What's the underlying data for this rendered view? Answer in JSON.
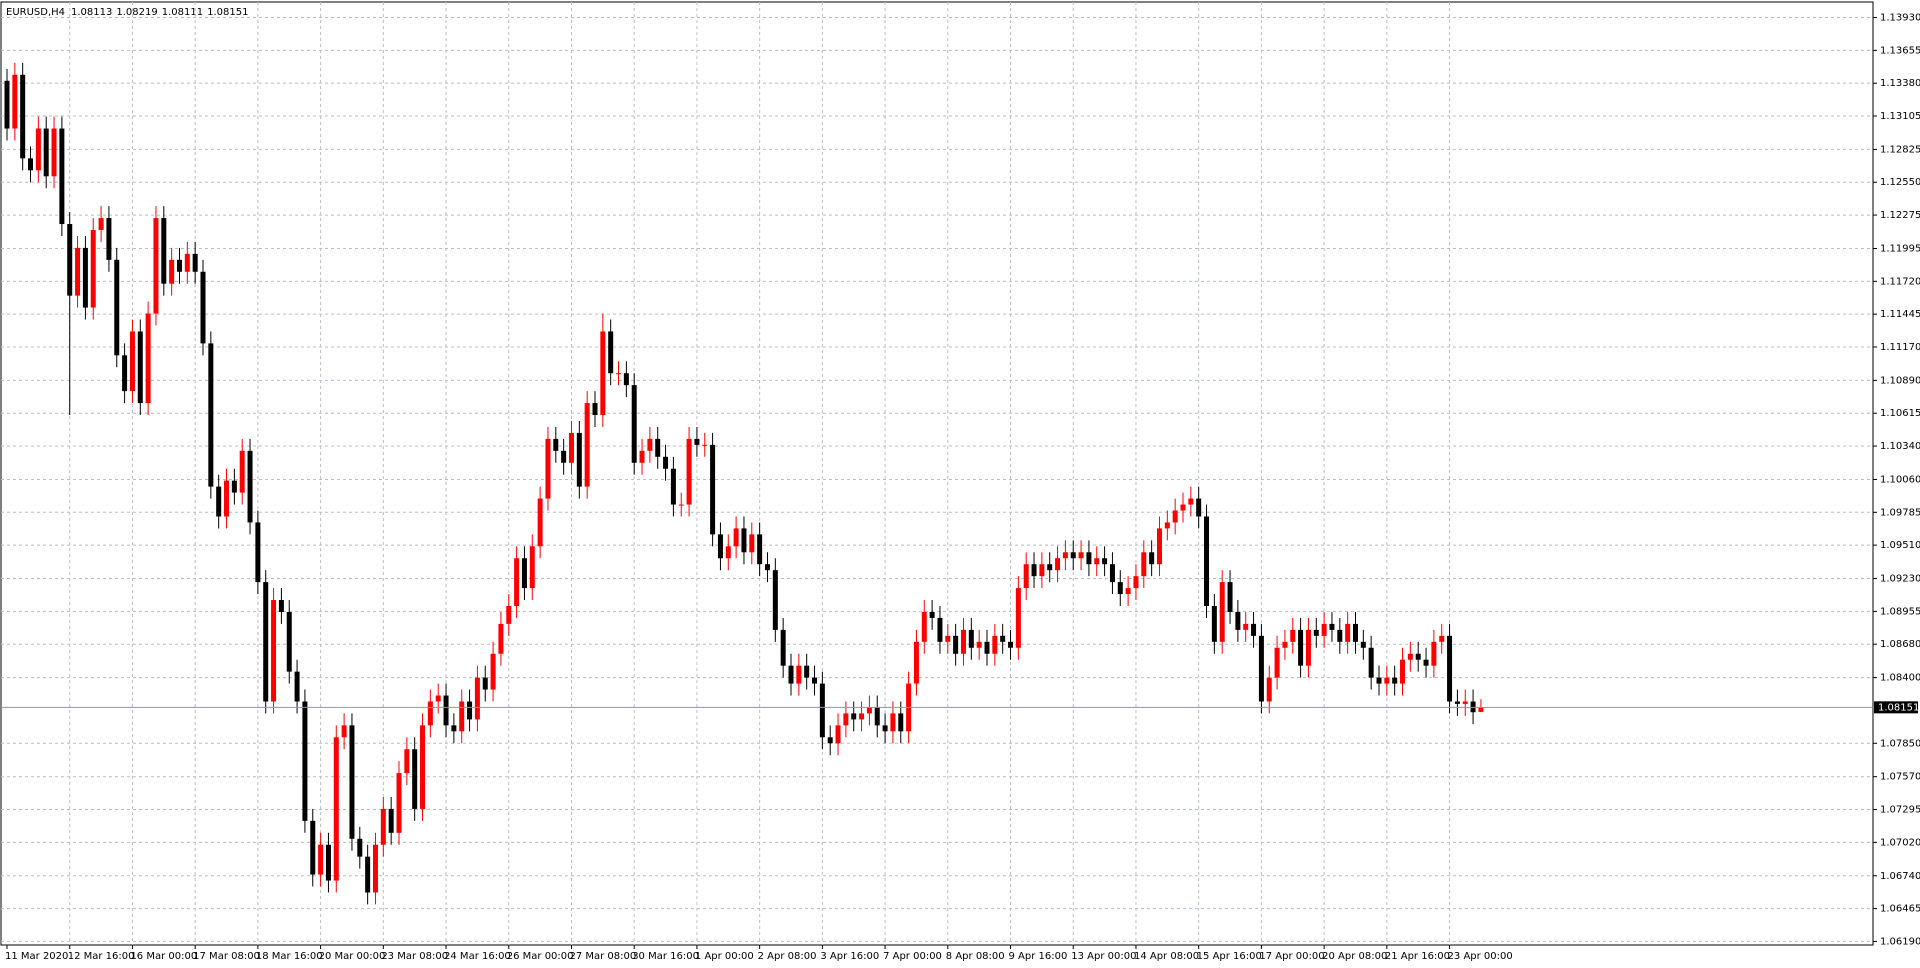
{
  "chart_data": {
    "type": "candlestick",
    "symbol": "EURUSD,H4",
    "up_color": "#ff0000",
    "down_color": "#000000",
    "grid": true,
    "ylim": [
      1.0616,
      1.1406
    ],
    "yticks": [
      {
        "value": 1.1393,
        "label": "1.13930"
      },
      1.13655,
      {
        "value": 1.1338,
        "label": "1.13380"
      },
      1.13105,
      1.12825,
      {
        "value": 1.1255,
        "label": "1.12550"
      },
      1.12275,
      1.11995,
      {
        "value": 1.1172,
        "label": "1.11720"
      },
      1.11445,
      {
        "value": 1.1117,
        "label": "1.11170"
      },
      {
        "value": 1.1089,
        "label": "1.10890"
      },
      1.10615,
      {
        "value": 1.1034,
        "label": "1.10340"
      },
      {
        "value": 1.1006,
        "label": "1.10060"
      },
      1.09785,
      {
        "value": 1.0951,
        "label": "1.09510"
      },
      {
        "value": 1.0923,
        "label": "1.09230"
      },
      1.08955,
      {
        "value": 1.0868,
        "label": "1.08680"
      },
      {
        "value": 1.084,
        "label": "1.08400"
      },
      {
        "value": 1.0785,
        "label": "1.07850"
      },
      {
        "value": 1.0757,
        "label": "1.07570"
      },
      1.07295,
      {
        "value": 1.0702,
        "label": "1.07020"
      },
      {
        "value": 1.0674,
        "label": "1.06740"
      },
      1.06465,
      {
        "value": 1.0619,
        "label": "1.06190"
      }
    ],
    "categories": [
      "11 Mar 2020",
      null,
      null,
      null,
      null,
      null,
      null,
      null,
      "12 Mar 16:00",
      null,
      null,
      null,
      null,
      null,
      null,
      null,
      "16 Mar 00:00",
      null,
      null,
      null,
      null,
      null,
      null,
      null,
      "17 Mar 08:00",
      null,
      null,
      null,
      null,
      null,
      null,
      null,
      "18 Mar 16:00",
      null,
      null,
      null,
      null,
      null,
      null,
      null,
      "20 Mar 00:00",
      null,
      null,
      null,
      null,
      null,
      null,
      null,
      "23 Mar 08:00",
      null,
      null,
      null,
      null,
      null,
      null,
      null,
      "24 Mar 16:00",
      null,
      null,
      null,
      null,
      null,
      null,
      null,
      "26 Mar 00:00",
      null,
      null,
      null,
      null,
      null,
      null,
      null,
      "27 Mar 08:00",
      null,
      null,
      null,
      null,
      null,
      null,
      null,
      "30 Mar 16:00",
      null,
      null,
      null,
      null,
      null,
      null,
      null,
      "1 Apr 00:00",
      null,
      null,
      null,
      null,
      null,
      null,
      null,
      "2 Apr 08:00",
      null,
      null,
      null,
      null,
      null,
      null,
      null,
      "3 Apr 16:00",
      null,
      null,
      null,
      null,
      null,
      null,
      null,
      "7 Apr 00:00",
      null,
      null,
      null,
      null,
      null,
      null,
      null,
      "8 Apr 08:00",
      null,
      null,
      null,
      null,
      null,
      null,
      null,
      "9 Apr 16:00",
      null,
      null,
      null,
      null,
      null,
      null,
      null,
      "13 Apr 00:00",
      null,
      null,
      null,
      null,
      null,
      null,
      null,
      "14 Apr 08:00",
      null,
      null,
      null,
      null,
      null,
      null,
      null,
      "15 Apr 16:00",
      null,
      null,
      null,
      null,
      null,
      null,
      null,
      "17 Apr 00:00",
      null,
      null,
      null,
      null,
      null,
      null,
      null,
      "20 Apr 08:00",
      null,
      null,
      null,
      null,
      null,
      null,
      null,
      "21 Apr 16:00",
      null,
      null,
      null,
      null,
      null,
      null,
      null,
      "23 Apr 00:00",
      null,
      null,
      null,
      null
    ],
    "ohlc": [
      [
        1.134,
        1.135,
        1.129,
        1.13
      ],
      [
        1.13,
        1.1355,
        1.129,
        1.1345
      ],
      [
        1.1345,
        1.1355,
        1.1265,
        1.1275
      ],
      [
        1.1275,
        1.1285,
        1.1255,
        1.1265
      ],
      [
        1.1265,
        1.131,
        1.1255,
        1.13
      ],
      [
        1.13,
        1.131,
        1.125,
        1.126
      ],
      [
        1.126,
        1.131,
        1.125,
        1.13
      ],
      [
        1.13,
        1.131,
        1.121,
        1.122
      ],
      [
        1.122,
        1.123,
        1.106,
        1.116
      ],
      [
        1.116,
        1.121,
        1.115,
        1.12
      ],
      [
        1.12,
        1.121,
        1.114,
        1.115
      ],
      [
        1.115,
        1.1225,
        1.114,
        1.1215
      ],
      [
        1.1215,
        1.1235,
        1.1205,
        1.1225
      ],
      [
        1.1225,
        1.1235,
        1.118,
        1.119
      ],
      [
        1.119,
        1.12,
        1.11,
        1.111
      ],
      [
        1.111,
        1.112,
        1.107,
        1.108
      ],
      [
        1.108,
        1.114,
        1.107,
        1.113
      ],
      [
        1.113,
        1.114,
        1.106,
        1.107
      ],
      [
        1.107,
        1.1155,
        1.106,
        1.1145
      ],
      [
        1.1145,
        1.1235,
        1.1135,
        1.1225
      ],
      [
        1.1225,
        1.1235,
        1.116,
        1.117
      ],
      [
        1.117,
        1.12,
        1.116,
        1.119
      ],
      [
        1.119,
        1.12,
        1.117,
        1.118
      ],
      [
        1.118,
        1.1205,
        1.117,
        1.1195
      ],
      [
        1.1195,
        1.1205,
        1.117,
        1.118
      ],
      [
        1.118,
        1.119,
        1.111,
        1.112
      ],
      [
        1.112,
        1.113,
        1.099,
        1.1
      ],
      [
        1.1,
        1.101,
        1.0965,
        1.0975
      ],
      [
        1.0975,
        1.1015,
        1.0965,
        1.1005
      ],
      [
        1.1005,
        1.1015,
        1.0985,
        1.0995
      ],
      [
        1.0995,
        1.104,
        1.0985,
        1.103
      ],
      [
        1.103,
        1.104,
        1.096,
        1.097
      ],
      [
        1.097,
        1.098,
        1.091,
        1.092
      ],
      [
        1.092,
        1.093,
        1.081,
        1.082
      ],
      [
        1.082,
        1.0915,
        1.081,
        1.0905
      ],
      [
        1.0905,
        1.0915,
        1.0885,
        1.0895
      ],
      [
        1.0895,
        1.0905,
        1.0835,
        1.0845
      ],
      [
        1.0845,
        1.0855,
        1.081,
        1.082
      ],
      [
        1.082,
        1.083,
        1.071,
        1.072
      ],
      [
        1.072,
        1.073,
        1.0665,
        1.0675
      ],
      [
        1.0675,
        1.071,
        1.0665,
        1.07
      ],
      [
        1.07,
        1.071,
        1.066,
        1.067
      ],
      [
        1.067,
        1.08,
        1.066,
        1.079
      ],
      [
        1.079,
        1.081,
        1.078,
        1.08
      ],
      [
        1.08,
        1.081,
        1.0695,
        1.0705
      ],
      [
        1.0705,
        1.0715,
        1.068,
        1.069
      ],
      [
        1.069,
        1.07,
        1.065,
        1.066
      ],
      [
        1.066,
        1.071,
        1.065,
        1.07
      ],
      [
        1.07,
        1.074,
        1.069,
        1.073
      ],
      [
        1.073,
        1.074,
        1.07,
        1.071
      ],
      [
        1.071,
        1.077,
        1.07,
        1.076
      ],
      [
        1.076,
        1.079,
        1.075,
        1.078
      ],
      [
        1.078,
        1.079,
        1.072,
        1.073
      ],
      [
        1.073,
        1.081,
        1.072,
        1.08
      ],
      [
        1.08,
        1.083,
        1.079,
        1.082
      ],
      [
        1.082,
        1.0835,
        1.081,
        1.0825
      ],
      [
        1.0825,
        1.0835,
        1.079,
        1.08
      ],
      [
        1.08,
        1.081,
        1.0785,
        1.0795
      ],
      [
        1.0795,
        1.083,
        1.0785,
        1.082
      ],
      [
        1.082,
        1.083,
        1.0795,
        1.0805
      ],
      [
        1.0805,
        1.085,
        1.0795,
        1.084
      ],
      [
        1.084,
        1.085,
        1.082,
        1.083
      ],
      [
        1.083,
        1.087,
        1.082,
        1.086
      ],
      [
        1.086,
        1.0895,
        1.085,
        1.0885
      ],
      [
        1.0885,
        1.091,
        1.0875,
        1.09
      ],
      [
        1.09,
        1.095,
        1.089,
        1.094
      ],
      [
        1.094,
        1.095,
        1.0905,
        1.0915
      ],
      [
        1.0915,
        1.096,
        1.0905,
        1.095
      ],
      [
        1.095,
        1.1,
        1.094,
        1.099
      ],
      [
        1.099,
        1.105,
        1.098,
        1.104
      ],
      [
        1.104,
        1.105,
        1.102,
        1.103
      ],
      [
        1.103,
        1.104,
        1.101,
        1.102
      ],
      [
        1.102,
        1.1055,
        1.101,
        1.1045
      ],
      [
        1.1045,
        1.1055,
        1.099,
        1.1
      ],
      [
        1.1,
        1.108,
        1.099,
        1.107
      ],
      [
        1.107,
        1.108,
        1.105,
        1.106
      ],
      [
        1.106,
        1.1145,
        1.105,
        1.113
      ],
      [
        1.113,
        1.114,
        1.1085,
        1.1095
      ],
      [
        1.1095,
        1.1105,
        1.1085,
        1.1095
      ],
      [
        1.1095,
        1.1105,
        1.1075,
        1.1085
      ],
      [
        1.1085,
        1.1095,
        1.101,
        1.102
      ],
      [
        1.102,
        1.104,
        1.101,
        1.103
      ],
      [
        1.103,
        1.105,
        1.102,
        1.104
      ],
      [
        1.104,
        1.105,
        1.1015,
        1.1025
      ],
      [
        1.1025,
        1.1035,
        1.1005,
        1.1015
      ],
      [
        1.1015,
        1.1025,
        1.0975,
        1.0985
      ],
      [
        1.0985,
        1.0995,
        1.0975,
        1.0985
      ],
      [
        1.0985,
        1.105,
        1.0975,
        1.104
      ],
      [
        1.104,
        1.105,
        1.1025,
        1.1035
      ],
      [
        1.1035,
        1.1045,
        1.1025,
        1.1035
      ],
      [
        1.1035,
        1.1045,
        1.095,
        1.096
      ],
      [
        1.096,
        1.097,
        1.093,
        1.094
      ],
      [
        1.094,
        1.096,
        1.093,
        1.095
      ],
      [
        1.095,
        1.0975,
        1.094,
        1.0965
      ],
      [
        1.0965,
        1.0975,
        1.0935,
        1.0945
      ],
      [
        1.0945,
        1.097,
        1.0935,
        1.096
      ],
      [
        1.096,
        1.097,
        1.0925,
        1.0935
      ],
      [
        1.0935,
        1.0945,
        1.092,
        1.093
      ],
      [
        1.093,
        1.094,
        1.087,
        1.088
      ],
      [
        1.088,
        1.089,
        1.084,
        1.085
      ],
      [
        1.085,
        1.086,
        1.0825,
        1.0835
      ],
      [
        1.0835,
        1.086,
        1.0825,
        1.085
      ],
      [
        1.085,
        1.086,
        1.083,
        1.084
      ],
      [
        1.084,
        1.085,
        1.0825,
        1.0835
      ],
      [
        1.0835,
        1.0845,
        1.078,
        1.079
      ],
      [
        1.079,
        1.08,
        1.0775,
        1.0785
      ],
      [
        1.0785,
        1.081,
        1.0775,
        1.08
      ],
      [
        1.08,
        1.082,
        1.079,
        1.081
      ],
      [
        1.081,
        1.082,
        1.0795,
        1.0805
      ],
      [
        1.0805,
        1.082,
        1.0795,
        1.081
      ],
      [
        1.081,
        1.0825,
        1.08,
        1.0815
      ],
      [
        1.0815,
        1.0825,
        1.079,
        1.08
      ],
      [
        1.08,
        1.081,
        1.0785,
        1.0795
      ],
      [
        1.0795,
        1.082,
        1.0785,
        1.081
      ],
      [
        1.081,
        1.082,
        1.0785,
        1.0795
      ],
      [
        1.0795,
        1.0845,
        1.0785,
        1.0835
      ],
      [
        1.0835,
        1.088,
        1.0825,
        1.087
      ],
      [
        1.087,
        1.0905,
        1.086,
        1.0895
      ],
      [
        1.0895,
        1.0905,
        1.088,
        1.089
      ],
      [
        1.089,
        1.09,
        1.086,
        1.087
      ],
      [
        1.087,
        1.0885,
        1.086,
        1.0875
      ],
      [
        1.0875,
        1.0885,
        1.085,
        1.086
      ],
      [
        1.086,
        1.089,
        1.085,
        1.088
      ],
      [
        1.088,
        1.089,
        1.0855,
        1.0865
      ],
      [
        1.0865,
        1.088,
        1.0855,
        1.087
      ],
      [
        1.087,
        1.088,
        1.085,
        1.086
      ],
      [
        1.086,
        1.0885,
        1.085,
        1.0875
      ],
      [
        1.0875,
        1.0885,
        1.086,
        1.087
      ],
      [
        1.087,
        1.088,
        1.0855,
        1.0865
      ],
      [
        1.0865,
        1.0925,
        1.0855,
        1.0915
      ],
      [
        1.0915,
        1.0945,
        1.0905,
        1.0935
      ],
      [
        1.0935,
        1.0945,
        1.0915,
        1.0925
      ],
      [
        1.0925,
        1.0945,
        1.0915,
        1.0935
      ],
      [
        1.0935,
        1.0945,
        1.092,
        1.093
      ],
      [
        1.093,
        1.095,
        1.092,
        1.094
      ],
      [
        1.094,
        1.0955,
        1.093,
        1.0945
      ],
      [
        1.0945,
        1.0955,
        1.093,
        1.094
      ],
      [
        1.094,
        1.0955,
        1.093,
        1.0945
      ],
      [
        1.0945,
        1.0955,
        1.0925,
        1.0935
      ],
      [
        1.0935,
        1.095,
        1.0925,
        1.094
      ],
      [
        1.094,
        1.095,
        1.0925,
        1.0935
      ],
      [
        1.0935,
        1.0945,
        1.091,
        1.092
      ],
      [
        1.092,
        1.093,
        1.09,
        1.091
      ],
      [
        1.091,
        1.0925,
        1.09,
        1.0915
      ],
      [
        1.0915,
        1.0935,
        1.0905,
        1.0925
      ],
      [
        1.0925,
        1.0955,
        1.0915,
        1.0945
      ],
      [
        1.0945,
        1.0955,
        1.0925,
        1.0935
      ],
      [
        1.0935,
        1.0975,
        1.0925,
        1.0965
      ],
      [
        1.0965,
        1.098,
        1.0955,
        1.097
      ],
      [
        1.097,
        1.099,
        1.096,
        1.098
      ],
      [
        1.098,
        1.0995,
        1.097,
        1.0985
      ],
      [
        1.0985,
        1.1,
        1.0975,
        1.099
      ],
      [
        1.099,
        1.1,
        1.0965,
        1.0975
      ],
      [
        1.0975,
        1.0985,
        1.089,
        1.09
      ],
      [
        1.09,
        1.091,
        1.086,
        1.087
      ],
      [
        1.087,
        1.093,
        1.086,
        1.092
      ],
      [
        1.092,
        1.093,
        1.0885,
        1.0895
      ],
      [
        1.0895,
        1.0905,
        1.087,
        1.088
      ],
      [
        1.088,
        1.0895,
        1.087,
        1.0885
      ],
      [
        1.0885,
        1.0895,
        1.0865,
        1.0875
      ],
      [
        1.0875,
        1.0885,
        1.081,
        1.082
      ],
      [
        1.082,
        1.085,
        1.081,
        1.084
      ],
      [
        1.084,
        1.0875,
        1.083,
        1.0865
      ],
      [
        1.0865,
        1.088,
        1.0855,
        1.087
      ],
      [
        1.087,
        1.089,
        1.086,
        1.088
      ],
      [
        1.088,
        1.089,
        1.084,
        1.085
      ],
      [
        1.085,
        1.089,
        1.084,
        1.088
      ],
      [
        1.088,
        1.089,
        1.0865,
        1.0875
      ],
      [
        1.0875,
        1.0895,
        1.0865,
        1.0885
      ],
      [
        1.0885,
        1.0895,
        1.087,
        1.088
      ],
      [
        1.088,
        1.089,
        1.086,
        1.087
      ],
      [
        1.087,
        1.0895,
        1.086,
        1.0885
      ],
      [
        1.0885,
        1.0895,
        1.086,
        1.087
      ],
      [
        1.087,
        1.088,
        1.0855,
        1.0865
      ],
      [
        1.0865,
        1.0875,
        1.083,
        1.084
      ],
      [
        1.084,
        1.085,
        1.0825,
        1.0835
      ],
      [
        1.0835,
        1.085,
        1.0825,
        1.084
      ],
      [
        1.084,
        1.085,
        1.0825,
        1.0835
      ],
      [
        1.0835,
        1.0865,
        1.0825,
        1.0855
      ],
      [
        1.0855,
        1.087,
        1.0845,
        1.086
      ],
      [
        1.086,
        1.087,
        1.0845,
        1.0855
      ],
      [
        1.0855,
        1.0865,
        1.084,
        1.085
      ],
      [
        1.085,
        1.088,
        1.084,
        1.087
      ],
      [
        1.087,
        1.0885,
        1.086,
        1.0875
      ],
      [
        1.0875,
        1.0885,
        1.081,
        1.082
      ],
      [
        1.082,
        1.083,
        1.0808,
        1.0818
      ],
      [
        1.0818,
        1.083,
        1.0808,
        1.082
      ],
      [
        1.082,
        1.083,
        1.0801,
        1.0811
      ],
      [
        1.08113,
        1.08219,
        1.08111,
        1.08151
      ]
    ]
  }
}
